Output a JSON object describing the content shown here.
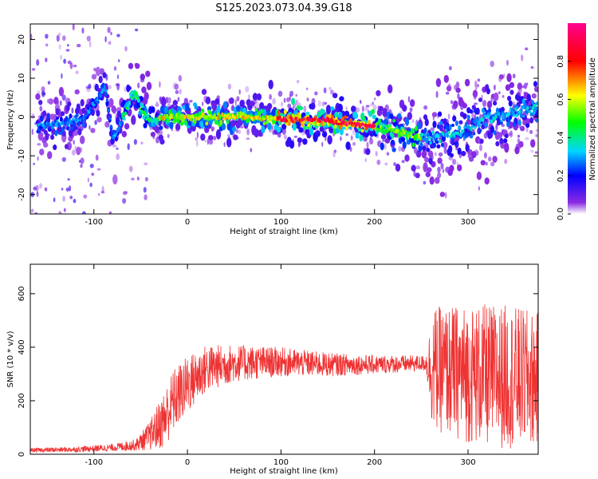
{
  "title": "S125.2023.073.04.39.G18",
  "colors": {
    "snr_line": "#ee3333",
    "axis": "#000000",
    "background": "#ffffff"
  },
  "chart_data": [
    {
      "type": "heatmap",
      "xlabel": "Height of straight line (km)",
      "ylabel": "Frequency (Hz)",
      "xlim": [
        -168,
        375
      ],
      "ylim": [
        -25,
        24
      ],
      "xticks": [
        -100,
        0,
        100,
        200,
        300
      ],
      "xtick_labels": [
        "-100",
        "0",
        "100",
        "200",
        "300"
      ],
      "yticks": [
        -20,
        -10,
        0,
        10,
        20
      ],
      "ytick_labels": [
        "-20",
        "-10",
        "0",
        "10",
        "20"
      ],
      "colorbar": {
        "label": "Normalized spectral amplitude",
        "range": [
          0,
          1
        ],
        "ticks": [
          0,
          0.2,
          0.4,
          0.6,
          0.8
        ],
        "tick_labels": [
          "0.0",
          "0.2",
          "0.4",
          "0.6",
          "0.8"
        ],
        "colormap": "rainbow (violet-blue-cyan-green-yellow-red-magenta)"
      },
      "ridge_track": [
        {
          "x": -160,
          "f": -2
        },
        {
          "x": -130,
          "f": -2
        },
        {
          "x": -110,
          "f": 0
        },
        {
          "x": -95,
          "f": 5
        },
        {
          "x": -88,
          "f": 8
        },
        {
          "x": -80,
          "f": -6
        },
        {
          "x": -70,
          "f": -1
        },
        {
          "x": -60,
          "f": 5
        },
        {
          "x": -55,
          "f": 6
        },
        {
          "x": -50,
          "f": 2
        },
        {
          "x": -40,
          "f": -1
        },
        {
          "x": -20,
          "f": 0
        },
        {
          "x": 0,
          "f": 0
        },
        {
          "x": 50,
          "f": 0
        },
        {
          "x": 100,
          "f": -0.5
        },
        {
          "x": 150,
          "f": -1
        },
        {
          "x": 200,
          "f": -2.5
        },
        {
          "x": 230,
          "f": -4
        },
        {
          "x": 260,
          "f": -5.5
        },
        {
          "x": 290,
          "f": -4
        },
        {
          "x": 320,
          "f": 0
        },
        {
          "x": 350,
          "f": 1
        },
        {
          "x": 375,
          "f": 2
        }
      ]
    },
    {
      "type": "line",
      "xlabel": "Height of straight line (km)",
      "ylabel": "SNR (10 * v/v)",
      "xlim": [
        -168,
        375
      ],
      "ylim": [
        0,
        710
      ],
      "xticks": [
        -100,
        0,
        100,
        200,
        300
      ],
      "xtick_labels": [
        "-100",
        "0",
        "100",
        "200",
        "300"
      ],
      "yticks": [
        0,
        200,
        400,
        600
      ],
      "ytick_labels": [
        "0",
        "200",
        "400",
        "600"
      ],
      "series": [
        {
          "color": "#ee3333",
          "envelope": [
            {
              "x": -168,
              "mean": 15,
              "spread": 8
            },
            {
              "x": -120,
              "mean": 18,
              "spread": 10
            },
            {
              "x": -80,
              "mean": 25,
              "spread": 14
            },
            {
              "x": -55,
              "mean": 35,
              "spread": 22
            },
            {
              "x": -40,
              "mean": 70,
              "spread": 55
            },
            {
              "x": -25,
              "mean": 130,
              "spread": 110
            },
            {
              "x": -15,
              "mean": 200,
              "spread": 120
            },
            {
              "x": 0,
              "mean": 260,
              "spread": 110
            },
            {
              "x": 20,
              "mean": 320,
              "spread": 90
            },
            {
              "x": 50,
              "mean": 340,
              "spread": 70
            },
            {
              "x": 100,
              "mean": 345,
              "spread": 55
            },
            {
              "x": 150,
              "mean": 335,
              "spread": 45
            },
            {
              "x": 200,
              "mean": 335,
              "spread": 35
            },
            {
              "x": 255,
              "mean": 340,
              "spread": 30
            },
            {
              "x": 262,
              "mean": 320,
              "spread": 230
            },
            {
              "x": 300,
              "mean": 300,
              "spread": 260
            },
            {
              "x": 340,
              "mean": 290,
              "spread": 270
            },
            {
              "x": 375,
              "mean": 280,
              "spread": 250
            }
          ]
        }
      ]
    }
  ]
}
